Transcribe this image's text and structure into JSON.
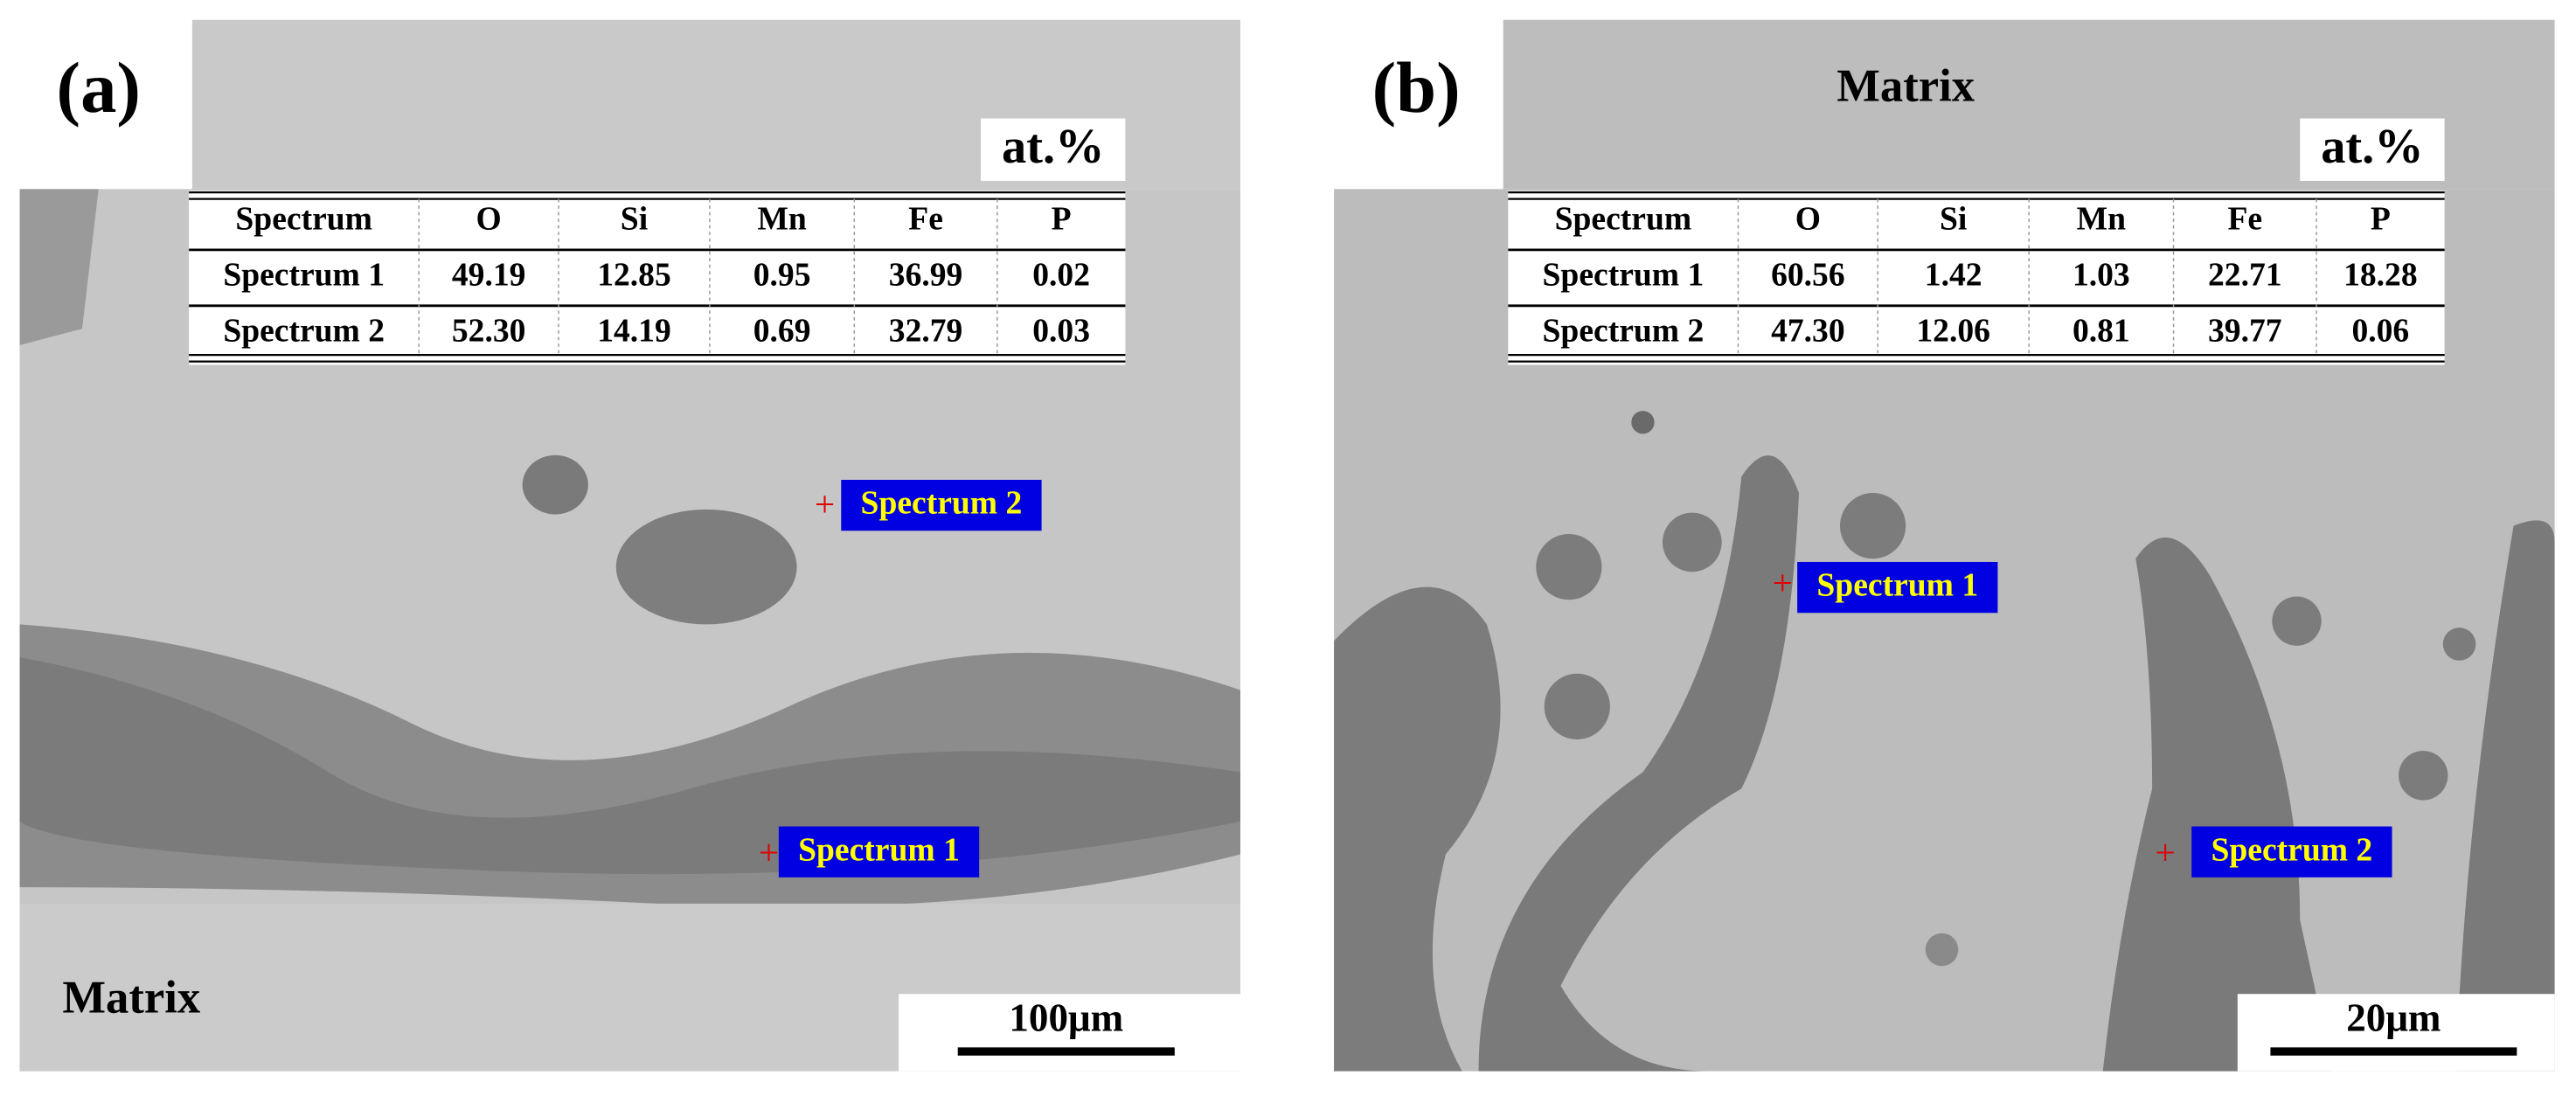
{
  "panels": [
    {
      "label": "(a)",
      "region_label": "Matrix",
      "unit": "at.%",
      "table": {
        "header": [
          "Spectrum",
          "O",
          "Si",
          "Mn",
          "Fe",
          "P"
        ],
        "rows": [
          [
            "Spectrum 1",
            "49.19",
            "12.85",
            "0.95",
            "36.99",
            "0.02"
          ],
          [
            "Spectrum 2",
            "52.30",
            "14.19",
            "0.69",
            "32.79",
            "0.03"
          ]
        ]
      },
      "markers": [
        "Spectrum 2",
        "Spectrum 1"
      ],
      "scale_bar": "100μm"
    },
    {
      "label": "(b)",
      "region_label": "Matrix",
      "unit": "at.%",
      "table": {
        "header": [
          "Spectrum",
          "O",
          "Si",
          "Mn",
          "Fe",
          "P"
        ],
        "rows": [
          [
            "Spectrum 1",
            "60.56",
            "1.42",
            "1.03",
            "22.71",
            "18.28"
          ],
          [
            "Spectrum 2",
            "47.30",
            "12.06",
            "0.81",
            "39.77",
            "0.06"
          ]
        ]
      },
      "markers": [
        "Spectrum 1",
        "Spectrum 2"
      ],
      "scale_bar": "20μm"
    }
  ]
}
